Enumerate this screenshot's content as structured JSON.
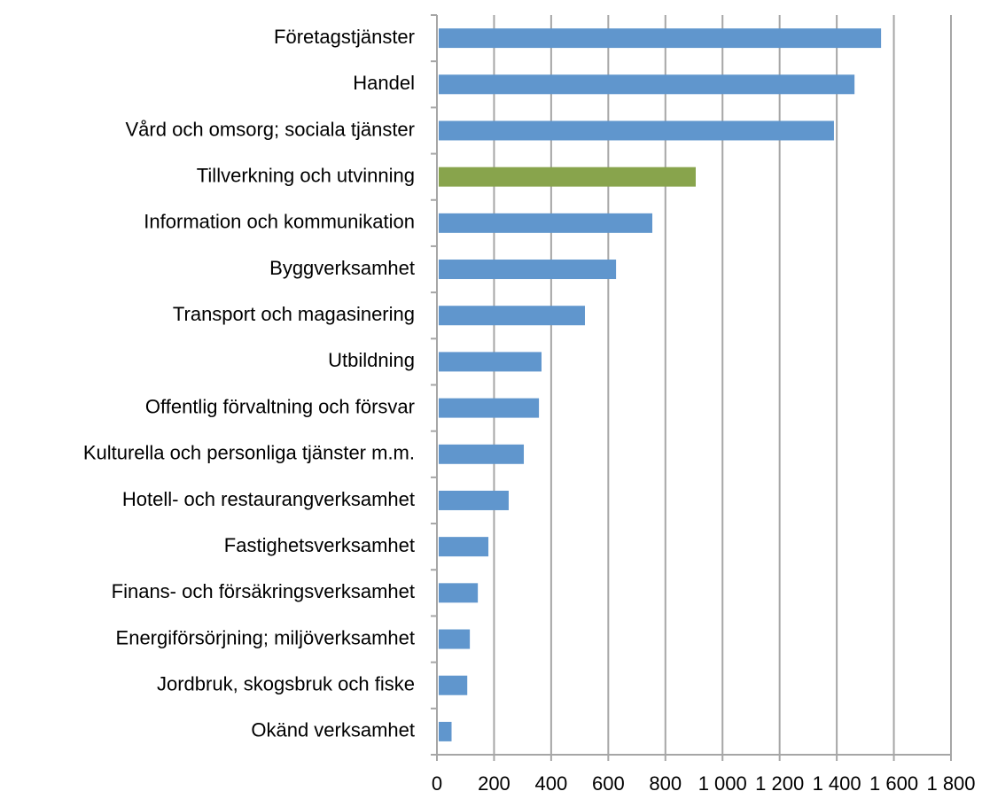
{
  "chart_data": {
    "type": "bar",
    "orientation": "horizontal",
    "categories": [
      "Företagstjänster",
      "Handel",
      "Vård och omsorg; sociala tjänster",
      "Tillverkning och utvinning",
      "Information och kommunikation",
      "Byggverksamhet",
      "Transport och magasinering",
      "Utbildning",
      "Offentlig förvaltning och försvar",
      "Kulturella och personliga tjänster m.m.",
      "Hotell- och restaurangverksamhet",
      "Fastighetsverksamhet",
      "Finans- och försäkringsverksamhet",
      "Energiförsörjning; miljöverksamhet",
      "Jordbruk, skogsbruk och fiske",
      "Okänd verksamhet"
    ],
    "values": [
      1549,
      1456,
      1384,
      900,
      748,
      621,
      512,
      360,
      351,
      298,
      245,
      174,
      137,
      109,
      100,
      45
    ],
    "colors": [
      "#6096cd",
      "#6096cd",
      "#6096cd",
      "#88a44c",
      "#6096cd",
      "#6096cd",
      "#6096cd",
      "#6096cd",
      "#6096cd",
      "#6096cd",
      "#6096cd",
      "#6096cd",
      "#6096cd",
      "#6096cd",
      "#6096cd",
      "#6096cd"
    ],
    "xlim": [
      0,
      1800
    ],
    "xticks": [
      0,
      200,
      400,
      600,
      800,
      {
        "value": 1000,
        "label": "1 000"
      },
      {
        "value": 1200,
        "label": "1 200"
      },
      {
        "value": 1400,
        "label": "1 400"
      },
      {
        "value": 1600,
        "label": "1 600"
      },
      {
        "value": 1800,
        "label": "1 800"
      }
    ],
    "grid": true
  }
}
